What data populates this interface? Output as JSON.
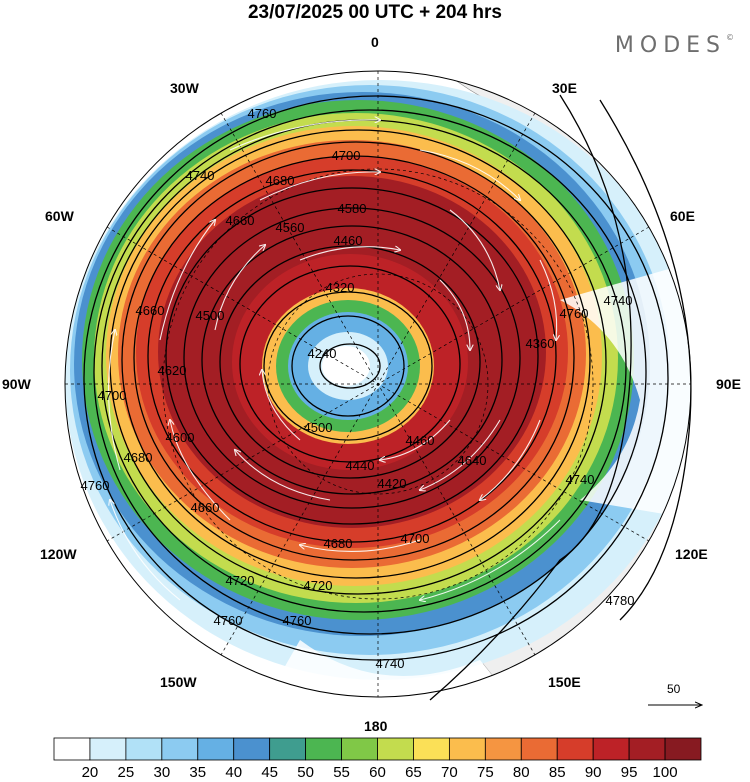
{
  "title": "23/07/2025  00 UTC  + 204 hrs",
  "logo": "MODES",
  "logo_mark": "©",
  "longitude_labels": {
    "top": "0",
    "top_left": "30W",
    "top_right": "30E",
    "upper_left": "60W",
    "upper_right": "60E",
    "left": "90W",
    "right": "90E",
    "lower_left": "120W",
    "lower_right": "120E",
    "bottom_left": "150W",
    "bottom_right": "150E",
    "bottom": "180"
  },
  "contour_labels": [
    "4760",
    "4740",
    "4700",
    "4680",
    "4580",
    "4660",
    "4560",
    "4460",
    "4320",
    "4240",
    "4500",
    "4620",
    "4600",
    "4440",
    "4420",
    "4640",
    "4720",
    "4780",
    "4360"
  ],
  "colorbar": {
    "ticks": [
      "20",
      "25",
      "30",
      "35",
      "40",
      "45",
      "50",
      "55",
      "60",
      "65",
      "70",
      "75",
      "80",
      "85",
      "90",
      "95",
      "100"
    ],
    "colors": [
      "#ffffff",
      "#d6f0fb",
      "#b1e1f7",
      "#8ccbf1",
      "#65b0e4",
      "#4b91cf",
      "#3f9d8f",
      "#4cb651",
      "#80c847",
      "#c3dc4e",
      "#fbe057",
      "#fbbd4d",
      "#f59541",
      "#ea6b34",
      "#d63d2a",
      "#bd2227",
      "#a31e24",
      "#871a21"
    ]
  },
  "reference_vector": {
    "label": "50"
  },
  "chart_data": {
    "type": "map",
    "projection": "south polar stereographic",
    "fields": [
      {
        "name": "geopotential height contours",
        "levels": [
          4240,
          4320,
          4360,
          4420,
          4440,
          4460,
          4500,
          4560,
          4580,
          4600,
          4620,
          4640,
          4660,
          4680,
          4700,
          4720,
          4740,
          4760,
          4780
        ]
      },
      {
        "name": "wind speed shading",
        "levels": [
          20,
          25,
          30,
          35,
          40,
          45,
          50,
          55,
          60,
          65,
          70,
          75,
          80,
          85,
          90,
          95,
          100
        ]
      },
      {
        "name": "wind streamlines",
        "reference_speed": 50
      }
    ]
  }
}
